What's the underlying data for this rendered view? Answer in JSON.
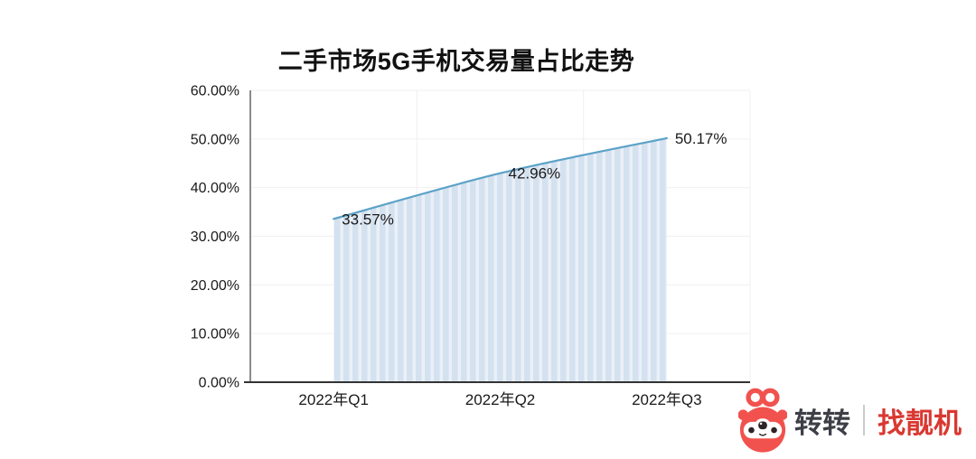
{
  "chart_data": {
    "type": "area",
    "title": "二手市场5G手机交易量占比走势",
    "categories": [
      "2022年Q1",
      "2022年Q2",
      "2022年Q3"
    ],
    "values": [
      33.57,
      42.96,
      50.17
    ],
    "point_labels": [
      "33.57%",
      "42.96%",
      "50.17%"
    ],
    "xlabel": "",
    "ylabel": "",
    "ylim": [
      0,
      60
    ],
    "ytick_values": [
      0,
      10,
      20,
      30,
      40,
      50,
      60
    ],
    "ytick_labels": [
      "0.00%",
      "10.00%",
      "20.00%",
      "30.00%",
      "40.00%",
      "50.00%",
      "60.00%"
    ],
    "grid": true,
    "legend": "none",
    "smooth": true,
    "colors": {
      "line": "#5ca2c7",
      "fill_stripe": "#d4e1ef",
      "fill_gap": "#eaf0f8",
      "gridline": "#f0f0f0",
      "axis_y": "#4d4d4d",
      "axis_x": "#333333",
      "label_text": "#1a1a1a"
    }
  },
  "brand": {
    "mascot_icon": "zhuanzhuan-mascot",
    "name": "转转",
    "divider": "|",
    "partner": "找靓机",
    "colors": {
      "mascot_red": "#f1524e",
      "name_text": "#3e3e47",
      "partner_text": "#d93831"
    }
  }
}
